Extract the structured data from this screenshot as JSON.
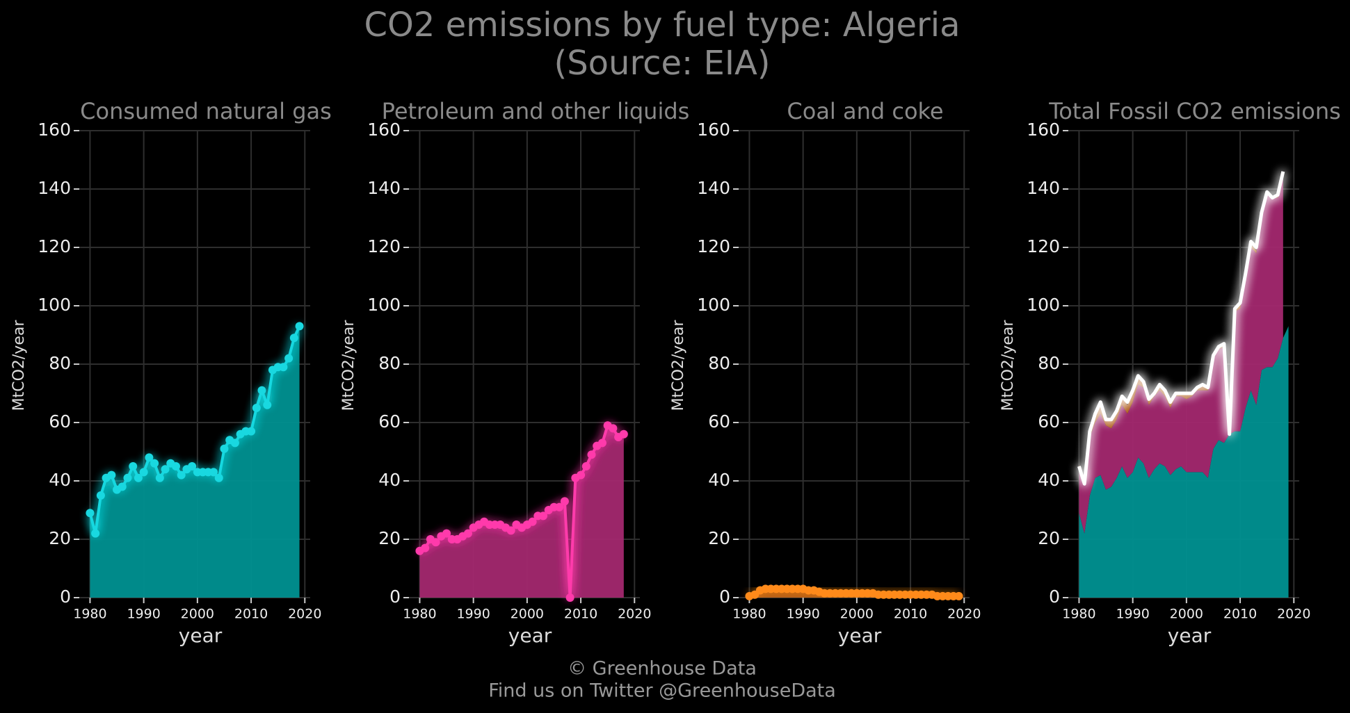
{
  "title": [
    "CO2 emissions by fuel type: Algeria",
    "(Source: EIA)"
  ],
  "footer": [
    "© Greenhouse Data",
    "Find us on Twitter @GreenhouseData"
  ],
  "chart_data": [
    {
      "type": "area",
      "title": "Consumed natural gas",
      "xlabel": "year",
      "ylabel": "MtCO2/year",
      "x": [
        1980,
        1981,
        1982,
        1983,
        1984,
        1985,
        1986,
        1987,
        1988,
        1989,
        1990,
        1991,
        1992,
        1993,
        1994,
        1995,
        1996,
        1997,
        1998,
        1999,
        2000,
        2001,
        2002,
        2003,
        2004,
        2005,
        2006,
        2007,
        2008,
        2009,
        2010,
        2011,
        2012,
        2013,
        2014,
        2015,
        2016,
        2017,
        2018,
        2019
      ],
      "series": [
        {
          "color": "#19d8e0",
          "fill": "#009191",
          "values": [
            29,
            22,
            35,
            41,
            42,
            37,
            38,
            41,
            45,
            41,
            43,
            48,
            46,
            41,
            44,
            46,
            45,
            42,
            44,
            45,
            43,
            43,
            43,
            43,
            41,
            51,
            54,
            53,
            56,
            57,
            57,
            65,
            71,
            66,
            78,
            79,
            79,
            82,
            89,
            93
          ]
        }
      ],
      "xlim": [
        1978,
        2021
      ],
      "ylim": [
        0,
        160
      ],
      "xticks": [
        1980,
        1990,
        2000,
        2010,
        2020
      ],
      "yticks": [
        0,
        20,
        40,
        60,
        80,
        100,
        120,
        140,
        160
      ],
      "grid": true
    },
    {
      "type": "area",
      "title": "Petroleum and other liquids",
      "xlabel": "year",
      "ylabel": "MtCO2/year",
      "x": [
        1980,
        1981,
        1982,
        1983,
        1984,
        1985,
        1986,
        1987,
        1988,
        1989,
        1990,
        1991,
        1992,
        1993,
        1994,
        1995,
        1996,
        1997,
        1998,
        1999,
        2000,
        2001,
        2002,
        2003,
        2004,
        2005,
        2006,
        2007,
        2008,
        2009,
        2010,
        2011,
        2012,
        2013,
        2014,
        2015,
        2016,
        2017,
        2018
      ],
      "series": [
        {
          "color": "#ff3aab",
          "fill": "#a3286f",
          "values": [
            16,
            17,
            20,
            19,
            21,
            22,
            20,
            20,
            21,
            22,
            24,
            25,
            26,
            25,
            25,
            25,
            24,
            23,
            25,
            24,
            25,
            26,
            28,
            28,
            30,
            31,
            31,
            33,
            0,
            41,
            42,
            45,
            49,
            52,
            53,
            59,
            58,
            55,
            56
          ]
        }
      ],
      "xlim": [
        1978,
        2021
      ],
      "ylim": [
        0,
        160
      ],
      "xticks": [
        1980,
        1990,
        2000,
        2010,
        2020
      ],
      "yticks": [
        0,
        20,
        40,
        60,
        80,
        100,
        120,
        140,
        160
      ],
      "grid": true
    },
    {
      "type": "area",
      "title": "Coal and coke",
      "xlabel": "year",
      "ylabel": "MtCO2/year",
      "x": [
        1980,
        1981,
        1982,
        1983,
        1984,
        1985,
        1986,
        1987,
        1988,
        1989,
        1990,
        1991,
        1992,
        1993,
        1994,
        1995,
        1996,
        1997,
        1998,
        1999,
        2000,
        2001,
        2002,
        2003,
        2004,
        2005,
        2006,
        2007,
        2008,
        2009,
        2010,
        2011,
        2012,
        2013,
        2014,
        2015,
        2016,
        2017,
        2018,
        2019
      ],
      "series": [
        {
          "color": "#ff8a1a",
          "fill": "#b8601a",
          "values": [
            0.5,
            1,
            2.5,
            3,
            3,
            3,
            3,
            3,
            3,
            3,
            3,
            2.5,
            2.5,
            2,
            1.5,
            1.5,
            1.5,
            1.5,
            1.5,
            1.5,
            1.5,
            1.5,
            1.5,
            1.5,
            1,
            1,
            1,
            1,
            1,
            1,
            1,
            1,
            1,
            1,
            1,
            0.5,
            0.5,
            0.5,
            0.5,
            0.5
          ]
        }
      ],
      "xlim": [
        1978,
        2021
      ],
      "ylim": [
        0,
        160
      ],
      "xticks": [
        1980,
        1990,
        2000,
        2010,
        2020
      ],
      "yticks": [
        0,
        20,
        40,
        60,
        80,
        100,
        120,
        140,
        160
      ],
      "grid": true
    },
    {
      "type": "total",
      "title": "Total Fossil CO2 emissions",
      "xlabel": "year",
      "ylabel": "MtCO2/year",
      "x": [
        1980,
        1981,
        1982,
        1983,
        1984,
        1985,
        1986,
        1987,
        1988,
        1989,
        1990,
        1991,
        1992,
        1993,
        1994,
        1995,
        1996,
        1997,
        1998,
        1999,
        2000,
        2001,
        2002,
        2003,
        2004,
        2005,
        2006,
        2007,
        2008,
        2009,
        2010,
        2011,
        2012,
        2013,
        2014,
        2015,
        2016,
        2017,
        2018
      ],
      "series": [
        {
          "color": "#ffffff",
          "values": [
            45,
            39,
            57,
            63,
            67,
            61,
            61,
            64,
            69,
            67,
            71,
            76,
            74,
            68,
            70,
            73,
            71,
            67,
            70,
            70,
            70,
            70,
            72,
            73,
            72,
            83,
            86,
            87,
            56,
            99,
            101,
            111,
            122,
            120,
            132,
            139,
            137,
            138,
            146
          ]
        }
      ],
      "xlim": [
        1978,
        2021
      ],
      "ylim": [
        0,
        160
      ],
      "xticks": [
        1980,
        1990,
        2000,
        2010,
        2020
      ],
      "yticks": [
        0,
        20,
        40,
        60,
        80,
        100,
        120,
        140,
        160
      ],
      "grid": true
    }
  ]
}
